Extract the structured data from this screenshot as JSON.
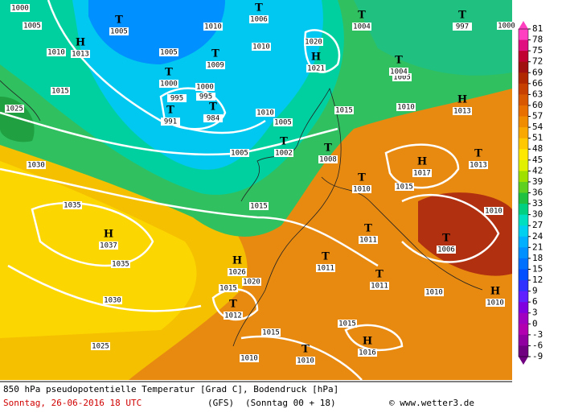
{
  "map": {
    "isobar_labels": [
      1000,
      1005,
      1010,
      1015,
      1025,
      1030,
      1035,
      1035,
      1030,
      1025,
      1010,
      1005,
      1000,
      995,
      995,
      1010,
      1020,
      1005,
      1010,
      1015,
      1010,
      1005,
      1005,
      1015,
      1015,
      1010,
      1010,
      1020,
      1015,
      1015,
      1015,
      1010,
      1000
    ],
    "centers": [
      {
        "kind": "T",
        "pressure": 1005
      },
      {
        "kind": "H",
        "pressure": 1013
      },
      {
        "kind": "T",
        "pressure": 1009
      },
      {
        "kind": "T",
        "pressure": 1000
      },
      {
        "kind": "T",
        "pressure": 991
      },
      {
        "kind": "T",
        "pressure": 984
      },
      {
        "kind": "T",
        "pressure": 1006
      },
      {
        "kind": "H",
        "pressure": 1021
      },
      {
        "kind": "T",
        "pressure": 1004
      },
      {
        "kind": "T",
        "pressure": 997
      },
      {
        "kind": "T",
        "pressure": 1004
      },
      {
        "kind": "H",
        "pressure": 1013
      },
      {
        "kind": "T",
        "pressure": 1002
      },
      {
        "kind": "T",
        "pressure": 1008
      },
      {
        "kind": "H",
        "pressure": 1017
      },
      {
        "kind": "T",
        "pressure": 1013
      },
      {
        "kind": "T",
        "pressure": 1010
      },
      {
        "kind": "T",
        "pressure": 1011
      },
      {
        "kind": "T",
        "pressure": 1006
      },
      {
        "kind": "T",
        "pressure": 1011
      },
      {
        "kind": "T",
        "pressure": 1011
      },
      {
        "kind": "H",
        "pressure": 1010
      },
      {
        "kind": "H",
        "pressure": 1037
      },
      {
        "kind": "H",
        "pressure": 1026
      },
      {
        "kind": "T",
        "pressure": 1012
      },
      {
        "kind": "H",
        "pressure": 1016
      },
      {
        "kind": "T",
        "pressure": 1010
      }
    ],
    "colorbar": {
      "ticks": [
        81,
        78,
        75,
        72,
        69,
        66,
        63,
        60,
        57,
        54,
        51,
        48,
        45,
        42,
        39,
        36,
        33,
        30,
        27,
        24,
        21,
        18,
        15,
        12,
        9,
        6,
        3,
        0,
        -3,
        -6,
        -9
      ],
      "colors": [
        "#ff40c0",
        "#e01080",
        "#c00030",
        "#a01010",
        "#b02800",
        "#c84000",
        "#d85800",
        "#e87000",
        "#f08c00",
        "#f8a800",
        "#ffc800",
        "#ffe800",
        "#e0f000",
        "#a0e000",
        "#60d020",
        "#20c040",
        "#00d080",
        "#00e0c0",
        "#00d0f0",
        "#00b0ff",
        "#0090ff",
        "#0070ff",
        "#0050ff",
        "#3030ff",
        "#6020ff",
        "#8000e0",
        "#a000c0",
        "#b000b0",
        "#9000a0",
        "#700080"
      ]
    },
    "footer": {
      "title": "850 hPa pseudopotentielle Temperatur [Grad C], Bodendruck [hPa]",
      "date": "Sonntag, 26-06-2016  18 UTC",
      "model": "(GFS)",
      "run": "(Sonntag 00 + 18)",
      "source": "© www.wetter3.de"
    }
  }
}
